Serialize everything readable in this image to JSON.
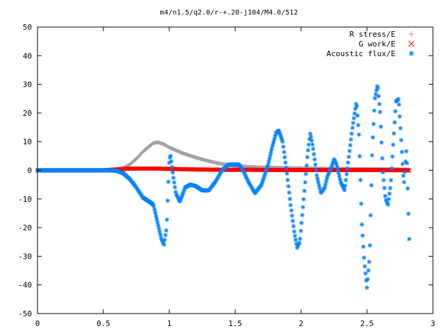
{
  "chart_data": {
    "type": "scatter",
    "title": "m4/n1.5/q2.0/r-+.20-j104/M4.0/512",
    "xlabel": "",
    "ylabel": "",
    "xlim": [
      0,
      3
    ],
    "ylim": [
      -50,
      50
    ],
    "xticks": [
      0,
      0.5,
      1,
      1.5,
      2,
      2.5,
      3
    ],
    "yticks": [
      -50,
      -40,
      -30,
      -20,
      -10,
      0,
      10,
      20,
      30,
      40,
      50
    ],
    "xtick_labels": [
      "0",
      "0.5",
      "1",
      "1.5",
      "2",
      "2.5",
      "3"
    ],
    "ytick_labels": [
      "-50",
      "-40",
      "-30",
      "-20",
      "-10",
      "0",
      "10",
      "20",
      "30",
      "40",
      "50"
    ],
    "grid": false,
    "legend_position": "top-right",
    "series": [
      {
        "name": "R stress/E",
        "marker": "plus",
        "color": "#a0a0a0",
        "x": [
          0.0,
          0.3,
          0.5,
          0.6,
          0.65,
          0.7,
          0.75,
          0.8,
          0.85,
          0.88,
          0.91,
          0.95,
          1.0,
          1.05,
          1.1,
          1.2,
          1.3,
          1.4,
          1.5,
          1.6,
          1.7,
          1.8,
          1.9,
          2.0,
          2.2,
          2.4,
          2.6,
          2.82
        ],
        "y": [
          0.0,
          0.0,
          0.1,
          0.3,
          0.8,
          2.0,
          4.0,
          6.5,
          8.5,
          9.5,
          9.8,
          9.3,
          8.0,
          7.0,
          6.0,
          4.5,
          3.2,
          2.2,
          1.6,
          1.2,
          1.0,
          0.9,
          0.8,
          0.7,
          0.55,
          0.45,
          0.4,
          0.3
        ]
      },
      {
        "name": "G work/E",
        "marker": "cross",
        "color": "#ff0000",
        "x": [
          0.0,
          0.5,
          0.6,
          0.7,
          0.8,
          0.9,
          1.0,
          1.1,
          1.2,
          1.4,
          1.6,
          1.8,
          2.0,
          2.2,
          2.4,
          2.6,
          2.82
        ],
        "y": [
          0.0,
          0.0,
          0.3,
          0.6,
          0.6,
          0.6,
          0.5,
          0.4,
          0.3,
          0.2,
          0.2,
          0.1,
          0.1,
          0.1,
          0.1,
          0.1,
          0.0
        ]
      },
      {
        "name": "Acoustic flux/E",
        "marker": "star",
        "color": "#0080ff",
        "x": [
          0.0,
          0.5,
          0.55,
          0.6,
          0.65,
          0.7,
          0.75,
          0.8,
          0.85,
          0.88,
          0.9,
          0.92,
          0.94,
          0.96,
          0.98,
          0.99,
          1.0,
          1.01,
          1.03,
          1.05,
          1.08,
          1.12,
          1.16,
          1.2,
          1.25,
          1.3,
          1.35,
          1.4,
          1.45,
          1.5,
          1.53,
          1.56,
          1.6,
          1.65,
          1.7,
          1.75,
          1.78,
          1.81,
          1.83,
          1.86,
          1.89,
          1.92,
          1.95,
          1.97,
          1.99,
          2.02,
          2.05,
          2.07,
          2.09,
          2.12,
          2.15,
          2.18,
          2.2,
          2.23,
          2.25,
          2.27,
          2.3,
          2.33,
          2.36,
          2.39,
          2.42,
          2.44,
          2.46,
          2.48,
          2.5,
          2.52,
          2.54,
          2.56,
          2.58,
          2.6,
          2.62,
          2.64,
          2.66,
          2.68,
          2.7,
          2.72,
          2.74,
          2.76,
          2.78,
          2.8,
          2.82
        ],
        "y": [
          0.0,
          0.0,
          0.0,
          -0.2,
          -1.0,
          -3.0,
          -6.0,
          -9.5,
          -11.0,
          -12.0,
          -16.0,
          -20.0,
          -24.0,
          -26.0,
          -20.0,
          -8.0,
          4.0,
          5.0,
          -2.0,
          -8.0,
          -11.0,
          -6.0,
          -5.0,
          -5.5,
          -7.0,
          -7.0,
          -4.0,
          0.0,
          2.0,
          2.0,
          2.0,
          0.0,
          -4.0,
          -8.0,
          -5.0,
          2.0,
          8.0,
          13.0,
          14.0,
          10.0,
          0.0,
          -12.0,
          -22.0,
          -27.0,
          -25.0,
          -10.0,
          6.0,
          13.0,
          8.0,
          -2.0,
          -8.0,
          -6.0,
          -2.0,
          1.0,
          4.0,
          2.0,
          -4.0,
          -7.0,
          4.0,
          15.0,
          24.0,
          12.0,
          -18.0,
          -32.0,
          -41.0,
          -30.0,
          8.0,
          25.0,
          30.0,
          20.0,
          0.0,
          -10.0,
          -12.0,
          -5.0,
          10.0,
          24.0,
          25.0,
          10.0,
          -5.0,
          8.0,
          -24.0
        ]
      }
    ]
  }
}
